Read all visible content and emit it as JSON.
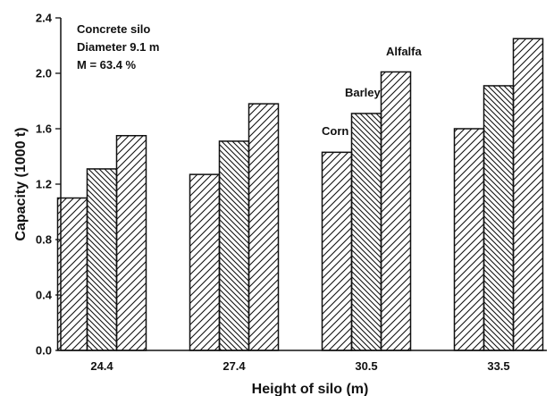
{
  "chart_data": {
    "type": "bar",
    "categories": [
      "24.4",
      "27.4",
      "30.5",
      "33.5"
    ],
    "series": [
      {
        "name": "Corn",
        "values": [
          1.1,
          1.27,
          1.43,
          1.6
        ],
        "pattern": "forward-diagonal"
      },
      {
        "name": "Barley",
        "values": [
          1.31,
          1.51,
          1.71,
          1.91
        ],
        "pattern": "backward-diagonal"
      },
      {
        "name": "Alfalfa",
        "values": [
          1.55,
          1.78,
          2.01,
          2.25
        ],
        "pattern": "forward-diagonal"
      }
    ],
    "xlabel": "Height of silo (m)",
    "ylabel": "Capacity (1000 t)",
    "ylim": [
      0,
      2.4
    ],
    "yticks": [
      "0.0",
      "0.4",
      "0.8",
      "1.2",
      "1.6",
      "2.0",
      "2.4"
    ],
    "annotations": [
      "Concrete silo",
      "Diameter 9.1 m",
      "M = 63.4 %"
    ],
    "grid": false,
    "legend": "inline labels above the 30.5 m bars",
    "colors": {
      "ink": "#111111",
      "background": "#ffffff"
    }
  }
}
